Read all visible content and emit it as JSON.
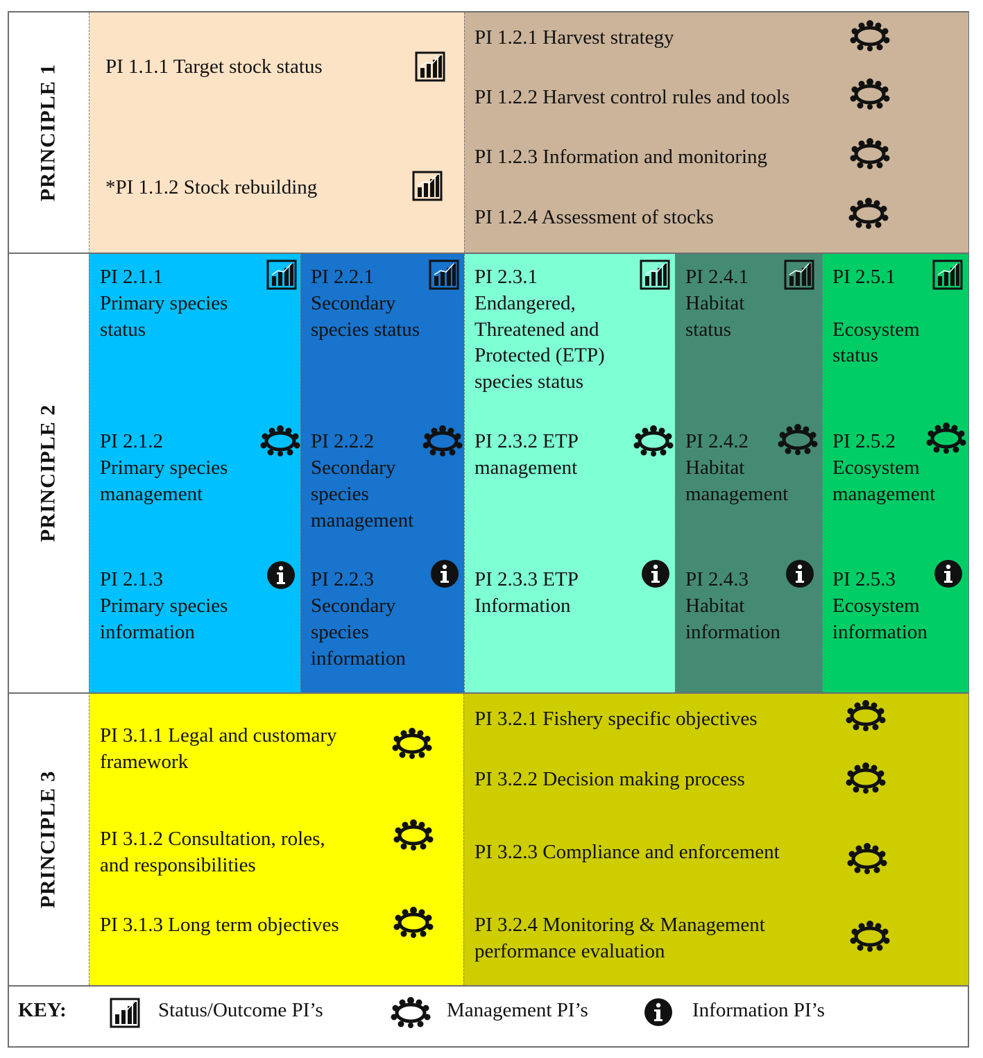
{
  "principles": {
    "p1": "PRINCIPLE 1",
    "p2": "PRINCIPLE 2",
    "p3": "PRINCIPLE 3"
  },
  "p1": {
    "pi111": "PI 1.1.1 Target stock status",
    "pi112": "*PI 1.1.2 Stock rebuilding",
    "pi121": "PI 1.2.1 Harvest strategy",
    "pi122": "PI 1.2.2 Harvest control rules and tools",
    "pi123": "PI 1.2.3 Information and monitoring",
    "pi124": "PI 1.2.4 Assessment of stocks"
  },
  "p2": {
    "c1": {
      "status": [
        "PI 2.1.1",
        "Primary species",
        "status"
      ],
      "mgmt": [
        "PI 2.1.2",
        "Primary species",
        "management"
      ],
      "info": [
        "PI 2.1.3",
        "Primary species",
        "information"
      ]
    },
    "c2": {
      "status": [
        "PI 2.2.1",
        "Secondary",
        "species status"
      ],
      "mgmt": [
        "PI 2.2.2",
        "Secondary",
        "species",
        "management"
      ],
      "info": [
        "PI 2.2.3",
        "Secondary",
        "species",
        "information"
      ]
    },
    "c3": {
      "status": [
        "PI 2.3.1",
        "Endangered,",
        "Threatened and",
        "Protected (ETP)",
        "species status"
      ],
      "mgmt": [
        "PI 2.3.2 ETP",
        "management"
      ],
      "info": [
        "PI 2.3.3 ETP",
        "Information"
      ]
    },
    "c4": {
      "status": [
        "PI 2.4.1",
        "Habitat",
        "status"
      ],
      "mgmt": [
        "PI 2.4.2",
        "Habitat",
        "management"
      ],
      "info": [
        "PI 2.4.3",
        "Habitat",
        "information"
      ]
    },
    "c5": {
      "status": [
        "PI 2.5.1",
        "Ecosystem",
        "status"
      ],
      "mgmt": [
        "PI 2.5.2",
        "Ecosystem",
        "management"
      ],
      "info": [
        "PI 2.5.3",
        "Ecosystem",
        "information"
      ]
    }
  },
  "p3": {
    "pi311": [
      "PI 3.1.1 Legal and customary",
      "framework"
    ],
    "pi312": [
      "PI 3.1.2 Consultation, roles,",
      "and responsibilities"
    ],
    "pi313": "PI 3.1.3 Long term objectives",
    "pi321": "PI 3.2.1 Fishery specific objectives",
    "pi322": "PI 3.2.2 Decision   making process",
    "pi323": "PI 3.2.3 Compliance and enforcement",
    "pi324": [
      "PI 3.2.4 Monitoring & Management",
      "performance evaluation"
    ]
  },
  "key": {
    "label": "KEY:",
    "status": "Status/Outcome PI’s",
    "management": "Management PI’s",
    "information": "Information PI’s"
  },
  "colors": {
    "p1_left": "#fde3c6",
    "p1_right": "#cbb49a",
    "p2_c1": "#00c0ff",
    "p2_c2": "#1874cc",
    "p2_c3": "#7fffd4",
    "p2_c4": "#458b74",
    "p2_c5": "#00cd66",
    "p3_left": "#ffff00",
    "p3_right": "#cdcd00"
  },
  "icons": {
    "status": "bar-chart-icon",
    "management": "meeting-table-icon",
    "information": "info-icon"
  }
}
